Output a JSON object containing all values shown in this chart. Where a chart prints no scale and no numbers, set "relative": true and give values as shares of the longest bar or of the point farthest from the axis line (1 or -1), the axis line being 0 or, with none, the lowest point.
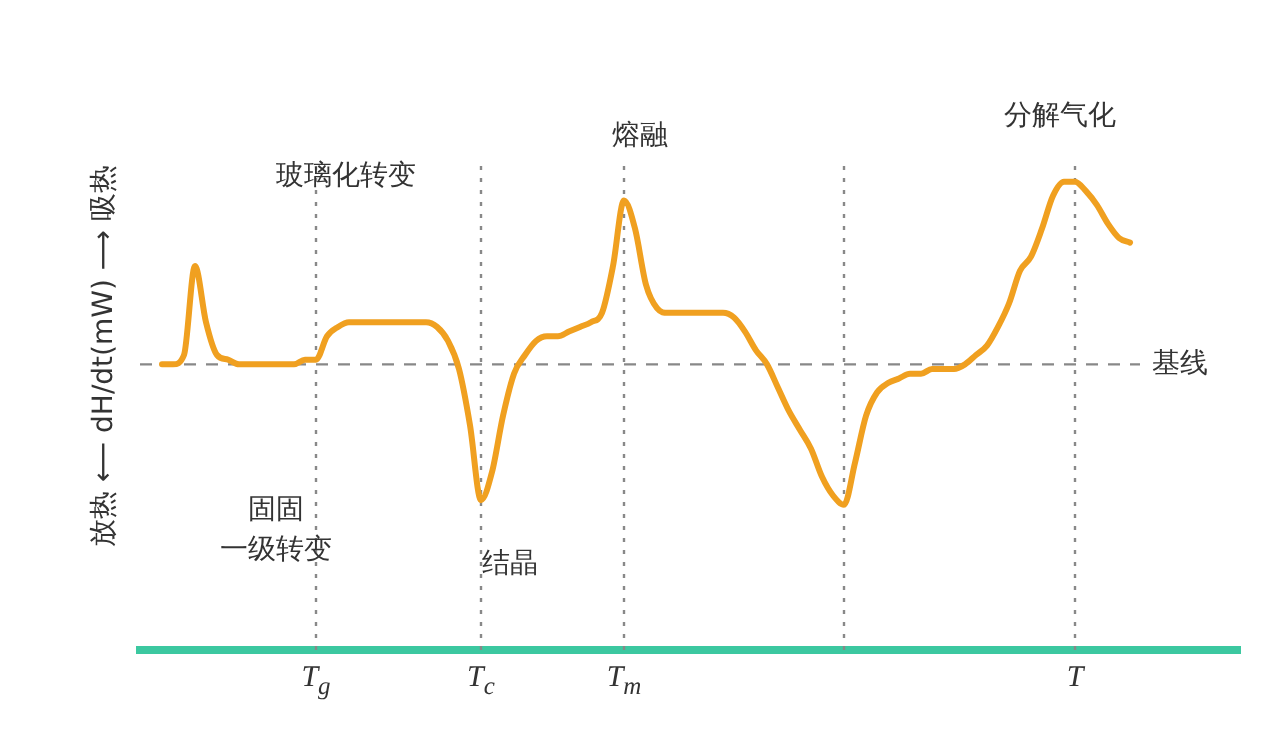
{
  "chart_data": {
    "type": "line",
    "relative": true,
    "ylabel": "放热 ⟵ dH/dt(mW) ⟶ 吸热",
    "categories": [
      null,
      null,
      null,
      null,
      null,
      null,
      null,
      null,
      null,
      null,
      null,
      null,
      null,
      null,
      null,
      null,
      "T$_{g}$",
      null,
      null,
      null,
      null,
      null,
      null,
      null,
      null,
      null,
      null,
      null,
      null,
      null,
      null,
      "T$_{c}$",
      null,
      null,
      null,
      null,
      null,
      null,
      null,
      null,
      null,
      null,
      null,
      null,
      "T$_{m}$",
      null,
      null,
      null,
      null,
      null,
      null,
      null,
      null,
      null,
      null,
      null,
      null,
      null,
      null,
      null,
      null,
      null,
      null,
      null,
      null,
      null,
      null,
      null,
      null,
      null,
      null,
      null,
      null,
      null,
      null,
      null,
      null,
      null,
      null,
      null,
      null,
      null,
      null,
      null,
      null,
      "T",
      null,
      null,
      null,
      null,
      null,
      null,
      null,
      null,
      null,
      null,
      null,
      null,
      null,
      null,
      null
    ],
    "tick_labels": "x",
    "grid": "x",
    "legend": false,
    "marker": "none",
    "line_style": "solid",
    "series": [
      {
        "color": "#f0a020",
        "values": [
          null,
          null,
          0.61,
          0.61,
          0.63,
          0.82,
          0.7,
          0.63,
          0.62,
          0.61,
          0.61,
          0.61,
          0.61,
          0.61,
          0.61,
          0.62,
          0.62,
          0.67,
          0.69,
          0.7,
          0.7,
          0.7,
          0.7,
          0.7,
          0.7,
          0.7,
          0.7,
          0.69,
          0.66,
          0.6,
          0.48,
          0.32,
          0.38,
          0.5,
          0.59,
          0.63,
          0.66,
          0.67,
          0.67,
          0.68,
          0.69,
          0.7,
          0.72,
          0.82,
          0.96,
          0.9,
          0.78,
          0.73,
          0.72,
          0.72,
          0.72,
          0.72,
          0.72,
          0.72,
          0.71,
          0.68,
          0.64,
          0.61,
          0.56,
          0.51,
          0.47,
          0.43,
          0.37,
          0.33,
          0.31,
          0.4,
          0.5,
          0.55,
          0.57,
          0.58,
          0.59,
          0.59,
          0.6,
          0.6,
          0.6,
          0.61,
          0.63,
          0.65,
          0.69,
          0.74,
          0.81,
          0.84,
          0.9,
          0.97,
          1.0,
          1.0,
          0.98,
          0.95,
          0.91,
          0.88,
          0.87,
          null,
          null,
          null,
          null,
          null,
          null,
          null,
          null,
          null,
          null
        ]
      }
    ],
    "ref_lines": [
      {
        "axis": "y",
        "value": 0.61,
        "label": "基线",
        "color": "#888888",
        "line_style": "dashed"
      }
    ],
    "annotations": [
      "玻璃化转变",
      "熔融",
      "分解气化",
      "固固一级转变",
      "结晶"
    ]
  }
}
